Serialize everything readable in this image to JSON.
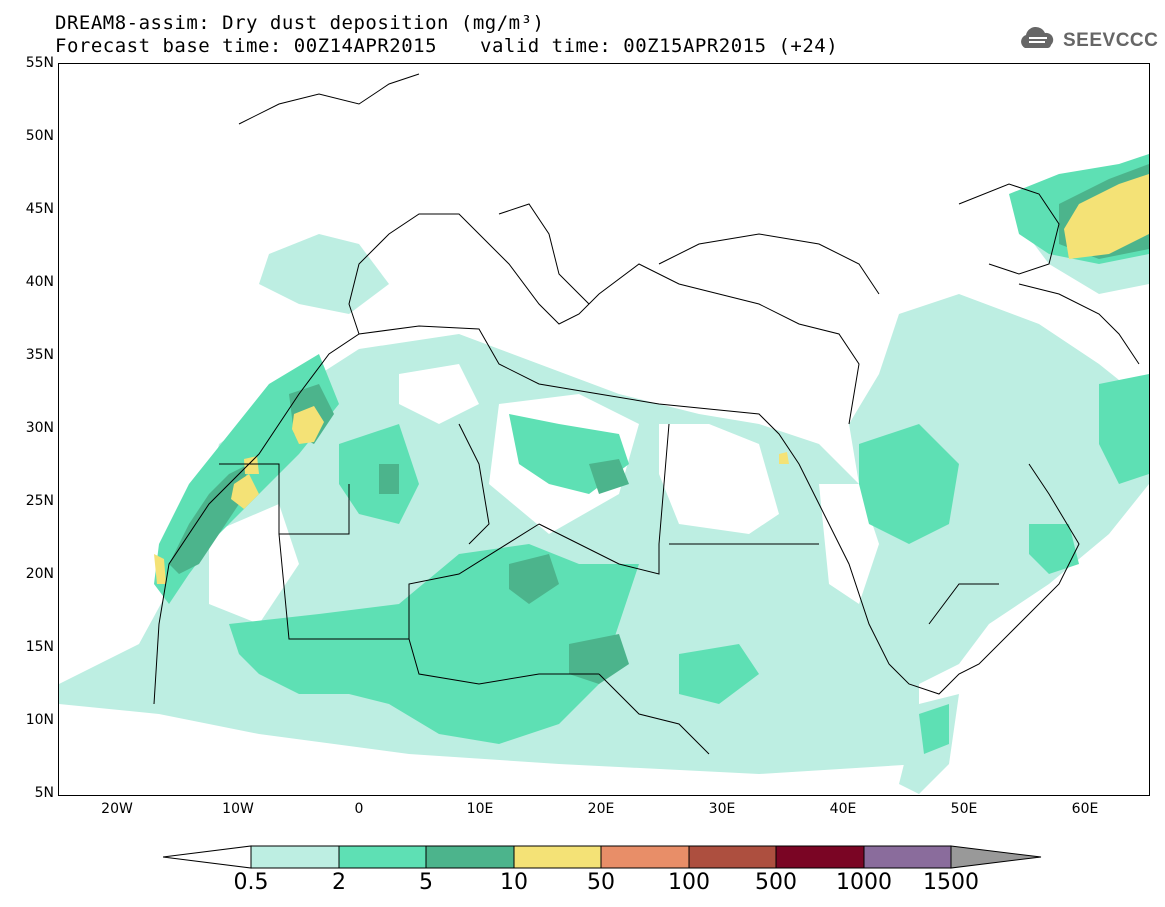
{
  "header": {
    "line1": "DREAM8-assim: Dry dust deposition (mg/m³)",
    "line2_left": "Forecast base time: 00Z14APR2015",
    "line2_right": "valid time: 00Z15APR2015 (+24)"
  },
  "logo": {
    "text": "SEEVCCC",
    "icon": "cloud-icon"
  },
  "map": {
    "lat_labels": [
      "55N",
      "50N",
      "45N",
      "40N",
      "35N",
      "30N",
      "25N",
      "20N",
      "15N",
      "10N",
      "5N"
    ],
    "lon_labels": [
      "20W",
      "10W",
      "0",
      "10E",
      "20E",
      "30E",
      "40E",
      "50E",
      "60E"
    ],
    "lat_range": [
      5,
      55
    ],
    "lon_range": [
      -25,
      65
    ]
  },
  "colorbar": {
    "labels": [
      "0.5",
      "2",
      "5",
      "10",
      "50",
      "100",
      "500",
      "1000",
      "1500"
    ],
    "colors": [
      "#bdeee2",
      "#5ee0b4",
      "#4cb48c",
      "#f4e276",
      "#e88e68",
      "#ad4f3f",
      "#7a0524",
      "#8a6c9c"
    ],
    "over_color": "#999999",
    "under_color": "#ffffff"
  }
}
